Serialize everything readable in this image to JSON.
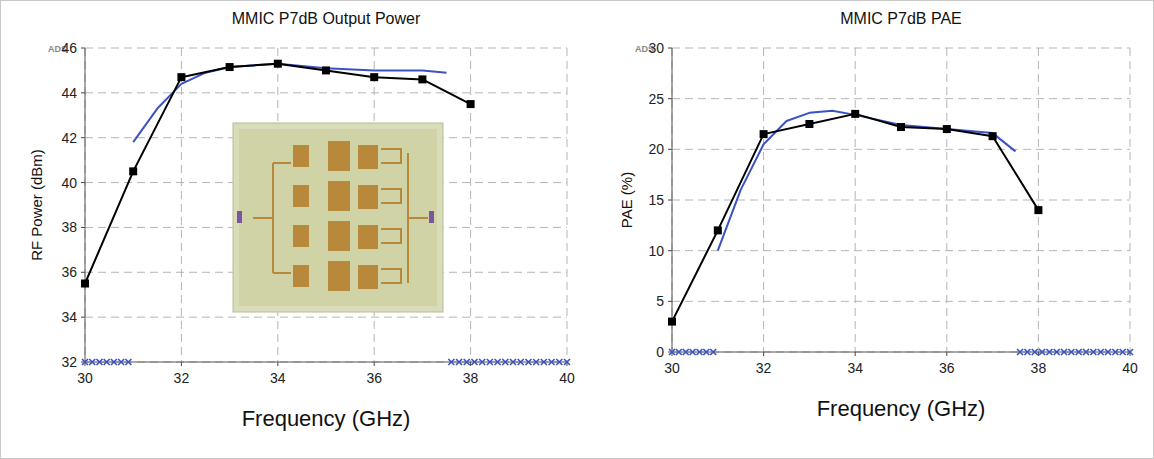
{
  "chart_data": [
    {
      "type": "line",
      "title": "MMIC P7dB Output Power",
      "x_label": "Frequency (GHz)",
      "y_label": "RF Power (dBm)",
      "annotations": [
        "ADS"
      ],
      "xlim": [
        30,
        40
      ],
      "xticks": [
        30,
        32,
        34,
        36,
        38,
        40
      ],
      "ylim": [
        32,
        46
      ],
      "yticks": [
        32,
        34,
        36,
        38,
        40,
        42,
        44,
        46
      ],
      "grid": true,
      "series": [
        {
          "type": "line",
          "color": "#3b52c4",
          "marker": "none",
          "line_style": "solid",
          "x": [
            31,
            31.5,
            32,
            32.5,
            33,
            34,
            35,
            36,
            37,
            37.5
          ],
          "values": [
            41.8,
            43.3,
            44.4,
            44.9,
            45.15,
            45.3,
            45.1,
            45.0,
            45.0,
            44.9
          ]
        },
        {
          "type": "line",
          "color": "#000000",
          "marker": "square",
          "line_style": "solid",
          "x": [
            30,
            31,
            32,
            33,
            34,
            35,
            36,
            37,
            38
          ],
          "values": [
            35.5,
            40.5,
            44.7,
            45.15,
            45.3,
            45.0,
            44.7,
            44.6,
            43.5
          ]
        },
        {
          "type": "scatter",
          "color": "#3b52c4",
          "marker": "x",
          "x": [
            30,
            30.15,
            30.3,
            30.45,
            30.6,
            30.75,
            30.9,
            37.6,
            37.76,
            37.92,
            38.08,
            38.24,
            38.4,
            38.56,
            38.72,
            38.88,
            39.04,
            39.2,
            39.36,
            39.52,
            39.68,
            39.84,
            40
          ],
          "values": [
            32,
            32,
            32,
            32,
            32,
            32,
            32,
            32,
            32,
            32,
            32,
            32,
            32,
            32,
            32,
            32,
            32,
            32,
            32,
            32,
            32,
            32,
            32
          ]
        }
      ]
    },
    {
      "type": "line",
      "title": "MMIC P7dB PAE",
      "x_label": "Frequency (GHz)",
      "y_label": "PAE (%)",
      "annotations": [
        "ADS"
      ],
      "xlim": [
        30,
        40
      ],
      "xticks": [
        30,
        32,
        34,
        36,
        38,
        40
      ],
      "ylim": [
        0,
        30
      ],
      "yticks": [
        0,
        5,
        10,
        15,
        20,
        25,
        30
      ],
      "grid": true,
      "series": [
        {
          "type": "line",
          "color": "#3b52c4",
          "marker": "none",
          "line_style": "solid",
          "x": [
            31,
            31.5,
            32,
            32.5,
            33,
            33.5,
            34,
            35,
            36,
            37,
            37.5
          ],
          "values": [
            10,
            16,
            20.5,
            22.8,
            23.6,
            23.8,
            23.4,
            22.4,
            22.0,
            21.6,
            19.8
          ]
        },
        {
          "type": "line",
          "color": "#000000",
          "marker": "square",
          "line_style": "solid",
          "x": [
            30,
            31,
            32,
            33,
            34,
            35,
            36,
            37,
            38
          ],
          "values": [
            3,
            12,
            21.5,
            22.5,
            23.5,
            22.2,
            22,
            21.3,
            14
          ]
        },
        {
          "type": "scatter",
          "color": "#3b52c4",
          "marker": "x",
          "x": [
            30,
            30.15,
            30.3,
            30.45,
            30.6,
            30.75,
            30.9,
            37.6,
            37.76,
            37.92,
            38.08,
            38.24,
            38.4,
            38.56,
            38.72,
            38.88,
            39.04,
            39.2,
            39.36,
            39.52,
            39.68,
            39.84,
            40
          ],
          "values": [
            0,
            0,
            0,
            0,
            0,
            0,
            0,
            0,
            0,
            0,
            0,
            0,
            0,
            0,
            0,
            0,
            0,
            0,
            0,
            0,
            0,
            0,
            0
          ]
        }
      ]
    }
  ]
}
